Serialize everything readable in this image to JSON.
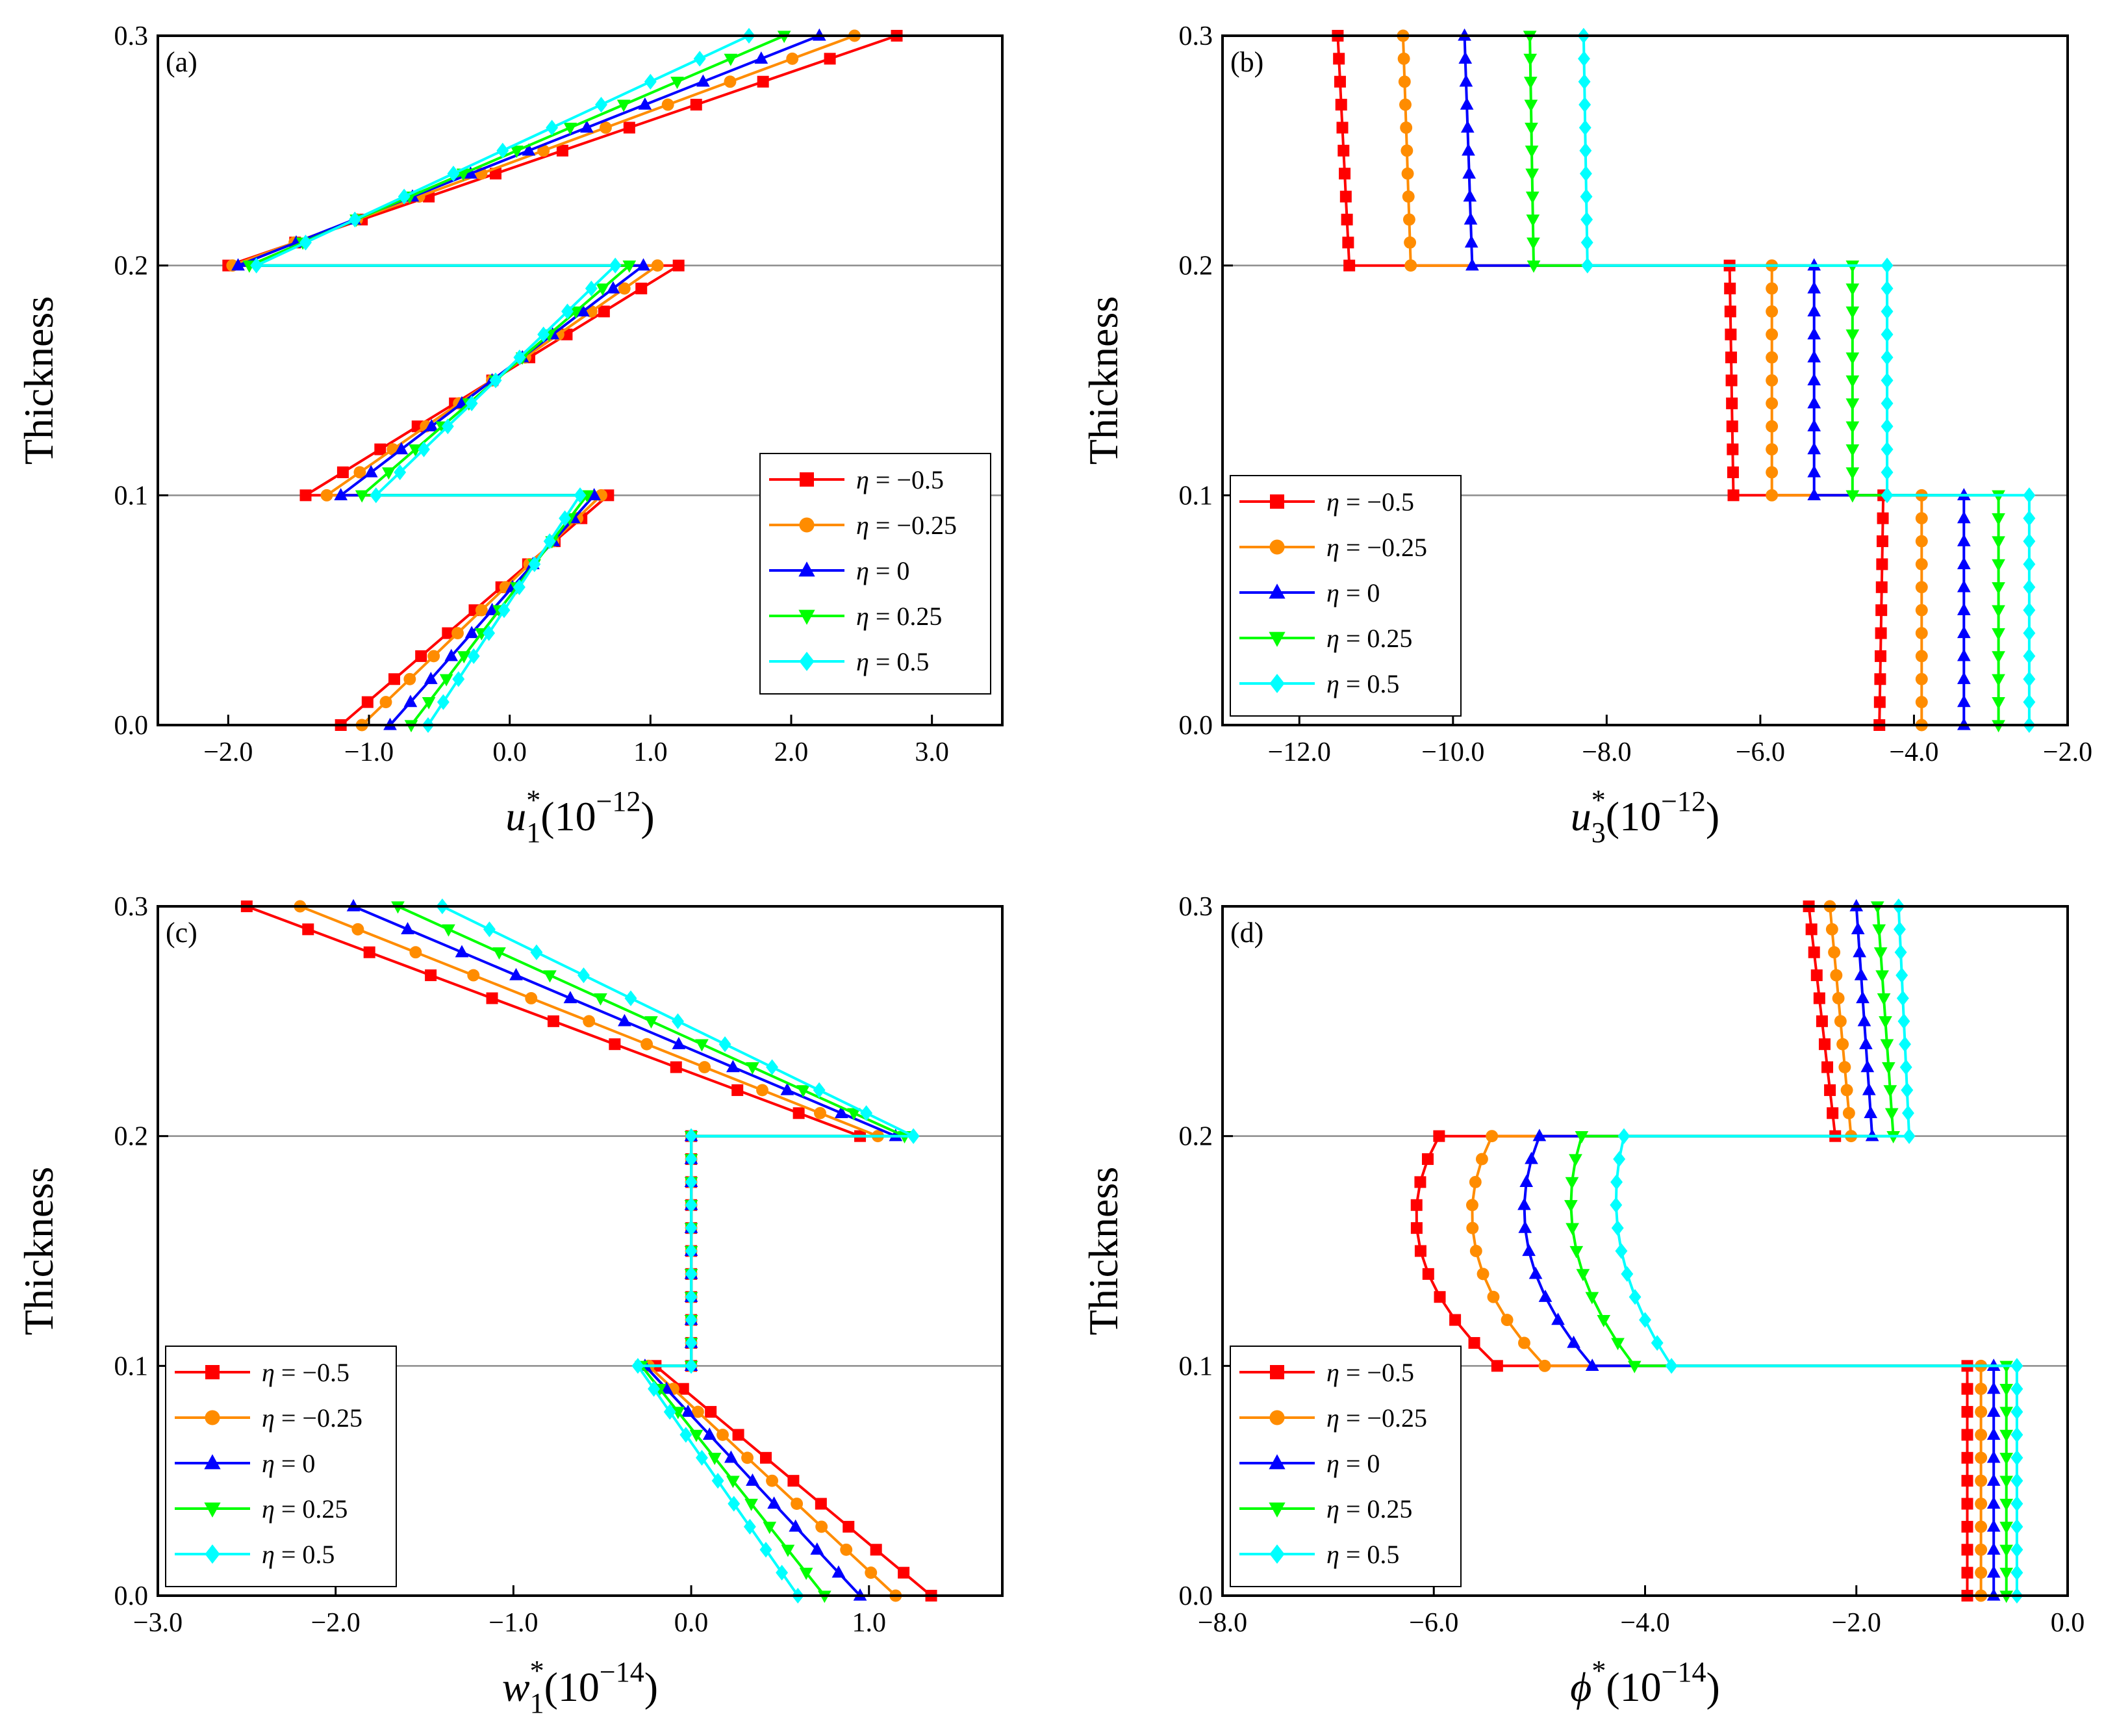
{
  "figure": {
    "legend_symbol": "η"
  },
  "colors": {
    "eta_-0.5": "#ff0000",
    "eta_-0.25": "#ff8c00",
    "eta_0": "#0000ff",
    "eta_0.25": "#00ff00",
    "eta_0.5": "#00ffff"
  },
  "chart_data": [
    {
      "id": "a",
      "type": "line",
      "panel_label": "(a)",
      "ylabel": "Thickness",
      "xlabel_var": "u",
      "xlabel_sub": "1",
      "xlabel_sup": "*",
      "xlabel_scale": "(10",
      "xlabel_exp": "−12",
      "xlabel_close": ")",
      "xlim": [
        -2.5,
        3.5
      ],
      "ylim": [
        0.0,
        0.3
      ],
      "xticks": [
        -2.0,
        -1.0,
        0.0,
        1.0,
        2.0,
        3.0
      ],
      "xtick_labels": [
        "−2.0",
        "−1.0",
        "0.0",
        "1.0",
        "2.0",
        "3.0"
      ],
      "yticks": [
        0.0,
        0.1,
        0.2,
        0.3
      ],
      "ytick_labels": [
        "0.0",
        "0.1",
        "0.2",
        "0.3"
      ],
      "interface_lines": [
        0.1,
        0.2
      ],
      "legend_position": "bottom-right",
      "series": [
        {
          "name": "η = −0.5",
          "label_eta": "η",
          "label_value": "= −0.5",
          "color_key": "eta_-0.5",
          "marker": "square",
          "layers": [
            {
              "y0": 0,
              "y1": 0.1,
              "x0": -1.2,
              "x1": 0.7
            },
            {
              "y0": 0.1,
              "y1": 0.2,
              "x0": -1.45,
              "x1": 1.2
            },
            {
              "y0": 0.2,
              "y1": 0.3,
              "x0": -2.0,
              "x1": 2.75
            }
          ]
        },
        {
          "name": "η = −0.25",
          "label_eta": "η",
          "label_value": "= −0.25",
          "color_key": "eta_-0.25",
          "marker": "circle",
          "layers": [
            {
              "y0": 0,
              "y1": 0.1,
              "x0": -1.05,
              "x1": 0.65
            },
            {
              "y0": 0.1,
              "y1": 0.2,
              "x0": -1.3,
              "x1": 1.05
            },
            {
              "y0": 0.2,
              "y1": 0.3,
              "x0": -1.97,
              "x1": 2.45
            }
          ]
        },
        {
          "name": "η = 0",
          "label_eta": "η",
          "label_value": "= 0",
          "color_key": "eta_0",
          "marker": "triangle-up",
          "layers": [
            {
              "y0": 0,
              "y1": 0.1,
              "x0": -0.85,
              "x1": 0.6
            },
            {
              "y0": 0.1,
              "y1": 0.2,
              "x0": -1.2,
              "x1": 0.95
            },
            {
              "y0": 0.2,
              "y1": 0.3,
              "x0": -1.93,
              "x1": 2.2
            }
          ]
        },
        {
          "name": "η = 0.25",
          "label_eta": "η",
          "label_value": "= 0.25",
          "color_key": "eta_0.25",
          "marker": "triangle-down",
          "layers": [
            {
              "y0": 0,
              "y1": 0.1,
              "x0": -0.7,
              "x1": 0.55
            },
            {
              "y0": 0.1,
              "y1": 0.2,
              "x0": -1.05,
              "x1": 0.85
            },
            {
              "y0": 0.2,
              "y1": 0.3,
              "x0": -1.85,
              "x1": 1.95
            }
          ]
        },
        {
          "name": "η = 0.5",
          "label_eta": "η",
          "label_value": "= 0.5",
          "color_key": "eta_0.5",
          "marker": "diamond",
          "layers": [
            {
              "y0": 0,
              "y1": 0.1,
              "x0": -0.58,
              "x1": 0.5
            },
            {
              "y0": 0.1,
              "y1": 0.2,
              "x0": -0.95,
              "x1": 0.75
            },
            {
              "y0": 0.2,
              "y1": 0.3,
              "x0": -1.8,
              "x1": 1.7
            }
          ]
        }
      ]
    },
    {
      "id": "b",
      "type": "line",
      "panel_label": "(b)",
      "ylabel": "Thickness",
      "xlabel_var": "u",
      "xlabel_sub": "3",
      "xlabel_sup": "*",
      "xlabel_scale": "(10",
      "xlabel_exp": "−12",
      "xlabel_close": ")",
      "xlim": [
        -13.0,
        -2.0
      ],
      "ylim": [
        0.0,
        0.3
      ],
      "xticks": [
        -12.0,
        -10.0,
        -8.0,
        -6.0,
        -4.0,
        -2.0
      ],
      "xtick_labels": [
        "−12.0",
        "−10.0",
        "−8.0",
        "−6.0",
        "−4.0",
        "−2.0"
      ],
      "yticks": [
        0.0,
        0.1,
        0.2,
        0.3
      ],
      "ytick_labels": [
        "0.0",
        "0.1",
        "0.2",
        "0.3"
      ],
      "interface_lines": [
        0.1,
        0.2
      ],
      "legend_position": "bottom-left",
      "series": [
        {
          "name": "η = −0.5",
          "label_eta": "η",
          "label_value": "= −0.5",
          "color_key": "eta_-0.5",
          "marker": "square",
          "layers": [
            {
              "y0": 0,
              "y1": 0.1,
              "x0": -4.45,
              "x1": -4.4
            },
            {
              "y0": 0.1,
              "y1": 0.2,
              "x0": -6.35,
              "x1": -6.4
            },
            {
              "y0": 0.2,
              "y1": 0.3,
              "x0": -11.35,
              "x1": -11.5
            }
          ]
        },
        {
          "name": "η = −0.25",
          "label_eta": "η",
          "label_value": "= −0.25",
          "color_key": "eta_-0.25",
          "marker": "circle",
          "layers": [
            {
              "y0": 0,
              "y1": 0.1,
              "x0": -3.9,
              "x1": -3.9
            },
            {
              "y0": 0.1,
              "y1": 0.2,
              "x0": -5.85,
              "x1": -5.85
            },
            {
              "y0": 0.2,
              "y1": 0.3,
              "x0": -10.55,
              "x1": -10.65
            }
          ]
        },
        {
          "name": "η = 0",
          "label_eta": "η",
          "label_value": "= 0",
          "color_key": "eta_0",
          "marker": "triangle-up",
          "layers": [
            {
              "y0": 0,
              "y1": 0.1,
              "x0": -3.35,
              "x1": -3.35
            },
            {
              "y0": 0.1,
              "y1": 0.2,
              "x0": -5.3,
              "x1": -5.3
            },
            {
              "y0": 0.2,
              "y1": 0.3,
              "x0": -9.75,
              "x1": -9.85
            }
          ]
        },
        {
          "name": "η = 0.25",
          "label_eta": "η",
          "label_value": "= 0.25",
          "color_key": "eta_0.25",
          "marker": "triangle-down",
          "layers": [
            {
              "y0": 0,
              "y1": 0.1,
              "x0": -2.9,
              "x1": -2.9
            },
            {
              "y0": 0.1,
              "y1": 0.2,
              "x0": -4.8,
              "x1": -4.8
            },
            {
              "y0": 0.2,
              "y1": 0.3,
              "x0": -8.95,
              "x1": -9.0
            }
          ]
        },
        {
          "name": "η = 0.5",
          "label_eta": "η",
          "label_value": "= 0.5",
          "color_key": "eta_0.5",
          "marker": "diamond",
          "layers": [
            {
              "y0": 0,
              "y1": 0.1,
              "x0": -2.5,
              "x1": -2.5
            },
            {
              "y0": 0.1,
              "y1": 0.2,
              "x0": -4.35,
              "x1": -4.35
            },
            {
              "y0": 0.2,
              "y1": 0.3,
              "x0": -8.25,
              "x1": -8.3
            }
          ]
        }
      ]
    },
    {
      "id": "c",
      "type": "line",
      "panel_label": "(c)",
      "ylabel": "Thickness",
      "xlabel_var": "w",
      "xlabel_sub": "1",
      "xlabel_sup": "*",
      "xlabel_scale": "(10",
      "xlabel_exp": "−14",
      "xlabel_close": ")",
      "xlim": [
        -3.0,
        1.75
      ],
      "ylim": [
        0.0,
        0.3
      ],
      "xticks": [
        -3.0,
        -2.0,
        -1.0,
        0.0,
        1.0
      ],
      "xtick_labels": [
        "−3.0",
        "−2.0",
        "−1.0",
        "0.0",
        "1.0"
      ],
      "yticks": [
        0.0,
        0.1,
        0.2,
        0.3
      ],
      "ytick_labels": [
        "0.0",
        "0.1",
        "0.2",
        "0.3"
      ],
      "interface_lines": [
        0.1,
        0.2
      ],
      "legend_position": "bottom-left",
      "series": [
        {
          "name": "η = −0.5",
          "label_eta": "η",
          "label_value": "= −0.5",
          "color_key": "eta_-0.5",
          "marker": "square",
          "layers": [
            {
              "y0": 0,
              "y1": 0.1,
              "x0": 1.35,
              "x1": -0.2
            },
            {
              "y0": 0.1,
              "y1": 0.2,
              "x0": 0.0,
              "x1": 0.0
            },
            {
              "y0": 0.2,
              "y1": 0.3,
              "x0": 0.95,
              "x1": -2.5
            }
          ]
        },
        {
          "name": "η = −0.25",
          "label_eta": "η",
          "label_value": "= −0.25",
          "color_key": "eta_-0.25",
          "marker": "circle",
          "layers": [
            {
              "y0": 0,
              "y1": 0.1,
              "x0": 1.15,
              "x1": -0.24
            },
            {
              "y0": 0.1,
              "y1": 0.2,
              "x0": 0.0,
              "x1": 0.0
            },
            {
              "y0": 0.2,
              "y1": 0.3,
              "x0": 1.05,
              "x1": -2.2
            }
          ]
        },
        {
          "name": "η = 0",
          "label_eta": "η",
          "label_value": "= 0",
          "color_key": "eta_0",
          "marker": "triangle-up",
          "layers": [
            {
              "y0": 0,
              "y1": 0.1,
              "x0": 0.95,
              "x1": -0.26
            },
            {
              "y0": 0.1,
              "y1": 0.2,
              "x0": 0.0,
              "x1": 0.0
            },
            {
              "y0": 0.2,
              "y1": 0.3,
              "x0": 1.15,
              "x1": -1.9
            }
          ]
        },
        {
          "name": "η = 0.25",
          "label_eta": "η",
          "label_value": "= 0.25",
          "color_key": "eta_0.25",
          "marker": "triangle-down",
          "layers": [
            {
              "y0": 0,
              "y1": 0.1,
              "x0": 0.75,
              "x1": -0.28
            },
            {
              "y0": 0.1,
              "y1": 0.2,
              "x0": 0.0,
              "x1": 0.0
            },
            {
              "y0": 0.2,
              "y1": 0.3,
              "x0": 1.2,
              "x1": -1.65
            }
          ]
        },
        {
          "name": "η = 0.5",
          "label_eta": "η",
          "label_value": "= 0.5",
          "color_key": "eta_0.5",
          "marker": "diamond",
          "layers": [
            {
              "y0": 0,
              "y1": 0.1,
              "x0": 0.6,
              "x1": -0.3
            },
            {
              "y0": 0.1,
              "y1": 0.2,
              "x0": 0.0,
              "x1": 0.0
            },
            {
              "y0": 0.2,
              "y1": 0.3,
              "x0": 1.25,
              "x1": -1.4
            }
          ]
        }
      ]
    },
    {
      "id": "d",
      "type": "line",
      "panel_label": "(d)",
      "ylabel": "Thickness",
      "xlabel_var": "ϕ",
      "xlabel_sub": "",
      "xlabel_sup": "*",
      "xlabel_scale": "(10",
      "xlabel_exp": "−14",
      "xlabel_close": ")",
      "xlim": [
        -8.0,
        0.0
      ],
      "ylim": [
        0.0,
        0.3
      ],
      "xticks": [
        -8.0,
        -6.0,
        -4.0,
        -2.0,
        0.0
      ],
      "xtick_labels": [
        "−8.0",
        "−6.0",
        "−4.0",
        "−2.0",
        "0.0"
      ],
      "yticks": [
        0.0,
        0.1,
        0.2,
        0.3
      ],
      "ytick_labels": [
        "0.0",
        "0.1",
        "0.2",
        "0.3"
      ],
      "interface_lines": [
        0.1,
        0.2
      ],
      "legend_position": "bottom-left",
      "series": [
        {
          "name": "η = −0.5",
          "label_eta": "η",
          "label_value": "= −0.5",
          "color_key": "eta_-0.5",
          "marker": "square",
          "layers": [
            {
              "y0": 0,
              "y1": 0.1,
              "x0": -0.95,
              "x1": -0.95,
              "bulge": 0
            },
            {
              "y0": 0.1,
              "y1": 0.2,
              "x0": -5.4,
              "x1": -5.95,
              "bulge": -0.45
            },
            {
              "y0": 0.2,
              "y1": 0.3,
              "x0": -2.2,
              "x1": -2.45,
              "bulge": 0
            }
          ]
        },
        {
          "name": "η = −0.25",
          "label_eta": "η",
          "label_value": "= −0.25",
          "color_key": "eta_-0.25",
          "marker": "circle",
          "layers": [
            {
              "y0": 0,
              "y1": 0.1,
              "x0": -0.82,
              "x1": -0.82,
              "bulge": 0
            },
            {
              "y0": 0.1,
              "y1": 0.2,
              "x0": -4.95,
              "x1": -5.45,
              "bulge": -0.4
            },
            {
              "y0": 0.2,
              "y1": 0.3,
              "x0": -2.05,
              "x1": -2.25,
              "bulge": 0
            }
          ]
        },
        {
          "name": "η = 0",
          "label_eta": "η",
          "label_value": "= 0",
          "color_key": "eta_0",
          "marker": "triangle-up",
          "layers": [
            {
              "y0": 0,
              "y1": 0.1,
              "x0": -0.7,
              "x1": -0.7,
              "bulge": 0
            },
            {
              "y0": 0.1,
              "y1": 0.2,
              "x0": -4.5,
              "x1": -5.0,
              "bulge": -0.35
            },
            {
              "y0": 0.2,
              "y1": 0.3,
              "x0": -1.85,
              "x1": -2.0,
              "bulge": 0
            }
          ]
        },
        {
          "name": "η = 0.25",
          "label_eta": "η",
          "label_value": "= 0.25",
          "color_key": "eta_0.25",
          "marker": "triangle-down",
          "layers": [
            {
              "y0": 0,
              "y1": 0.1,
              "x0": -0.58,
              "x1": -0.58,
              "bulge": 0
            },
            {
              "y0": 0.1,
              "y1": 0.2,
              "x0": -4.1,
              "x1": -4.6,
              "bulge": -0.3
            },
            {
              "y0": 0.2,
              "y1": 0.3,
              "x0": -1.65,
              "x1": -1.8,
              "bulge": 0
            }
          ]
        },
        {
          "name": "η = 0.5",
          "label_eta": "η",
          "label_value": "= 0.5",
          "color_key": "eta_0.5",
          "marker": "diamond",
          "layers": [
            {
              "y0": 0,
              "y1": 0.1,
              "x0": -0.48,
              "x1": -0.48,
              "bulge": 0
            },
            {
              "y0": 0.1,
              "y1": 0.2,
              "x0": -3.75,
              "x1": -4.2,
              "bulge": -0.25
            },
            {
              "y0": 0.2,
              "y1": 0.3,
              "x0": -1.5,
              "x1": -1.6,
              "bulge": 0
            }
          ]
        }
      ]
    }
  ]
}
